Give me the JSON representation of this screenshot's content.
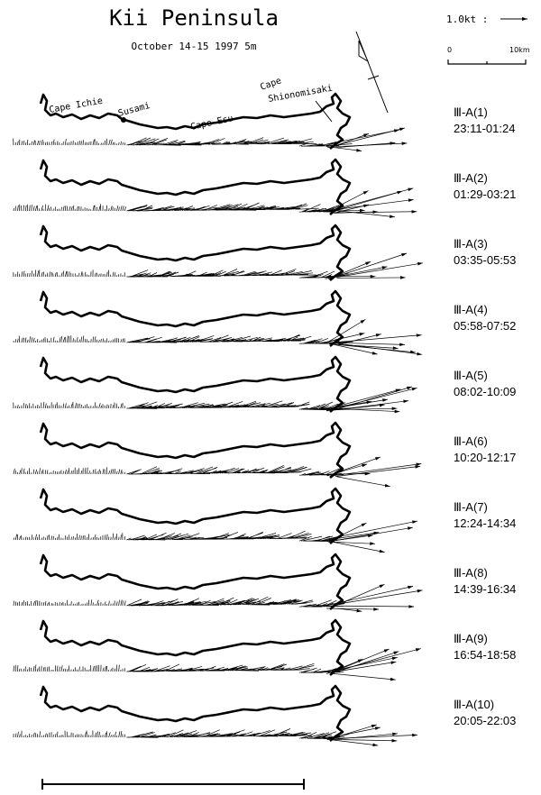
{
  "header": {
    "title": "Kii Peninsula",
    "subtitle": "October 14-15 1997 5m"
  },
  "scale": {
    "speed": "1.0kt :",
    "start": "0",
    "end": "10km"
  },
  "places": [
    "Cape Ichie",
    "Susami",
    "Cape Esu",
    "Cape Shionomisaki"
  ],
  "panels": [
    {
      "id": "Ⅲ-A(1)",
      "time": "23:11-01:24"
    },
    {
      "id": "Ⅲ-A(2)",
      "time": "01:29-03:21"
    },
    {
      "id": "Ⅲ-A(3)",
      "time": "03:35-05:53"
    },
    {
      "id": "Ⅲ-A(4)",
      "time": "05:58-07:52"
    },
    {
      "id": "Ⅲ-A(5)",
      "time": "08:02-10:09"
    },
    {
      "id": "Ⅲ-A(6)",
      "time": "10:20-12:17"
    },
    {
      "id": "Ⅲ-A(7)",
      "time": "12:24-14:34"
    },
    {
      "id": "Ⅲ-A(8)",
      "time": "14:39-16:34"
    },
    {
      "id": "Ⅲ-A(9)",
      "time": "16:54-18:58"
    },
    {
      "id": "Ⅲ-A(10)",
      "time": "20:05-22:03"
    }
  ]
}
